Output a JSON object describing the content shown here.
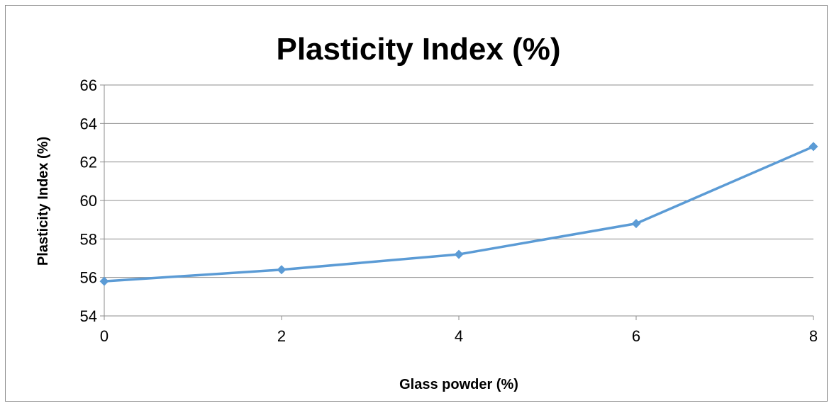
{
  "chart_data": {
    "type": "line",
    "title": "Plasticity Index (%)",
    "xlabel": "Glass powder (%)",
    "ylabel": "Plasticity Index (%)",
    "x": [
      0,
      2,
      4,
      6,
      8
    ],
    "x_ticks": [
      "0",
      "2",
      "4",
      "6",
      "8"
    ],
    "y_ticks": [
      "54",
      "56",
      "58",
      "60",
      "62",
      "64",
      "66"
    ],
    "xlim": [
      0,
      8
    ],
    "ylim": [
      54,
      66
    ],
    "grid": "horizontal",
    "legend": "none",
    "series": [
      {
        "values": [
          55.8,
          56.4,
          57.2,
          58.8,
          62.8
        ],
        "color": "#5b9bd5",
        "marker": "diamond"
      }
    ]
  }
}
